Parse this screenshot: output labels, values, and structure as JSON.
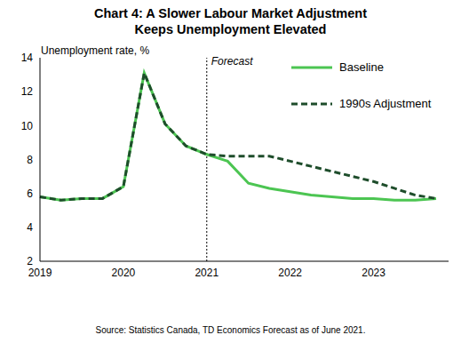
{
  "chart_data": {
    "type": "line",
    "title": "Chart 4: A Slower Labour Market Adjustment\nKeeps Unemployment Elevated",
    "y_label": "Unemployment rate, %",
    "source": "Source: Statistics Canada, TD Economics  Forecast as of June 2021.",
    "categories": [
      "2019",
      null,
      null,
      null,
      "2020",
      null,
      null,
      null,
      "2021",
      null,
      null,
      null,
      "2022",
      null,
      null,
      null,
      "2023",
      null,
      null,
      null
    ],
    "series": [
      {
        "name": "Baseline",
        "color": "#4cc552",
        "line_style": "solid",
        "values": [
          5.8,
          5.6,
          5.7,
          5.7,
          6.4,
          13.1,
          10.1,
          8.8,
          8.3,
          7.9,
          6.6,
          6.3,
          6.1,
          5.9,
          5.8,
          5.7,
          5.7,
          5.6,
          5.6,
          5.7
        ]
      },
      {
        "name": "1990s Adjustment",
        "color": "#1e4d2b",
        "line_style": "dashed",
        "values": [
          5.8,
          5.6,
          5.7,
          5.7,
          6.4,
          13.1,
          10.1,
          8.8,
          8.3,
          8.2,
          8.2,
          8.2,
          7.9,
          7.6,
          7.3,
          7.0,
          6.7,
          6.3,
          5.9,
          5.7
        ]
      }
    ],
    "annotations": [
      {
        "text": "Forecast",
        "x": "2021"
      }
    ],
    "ylim": [
      2,
      14
    ],
    "yticks": [
      2,
      4,
      6,
      8,
      10,
      12,
      14
    ],
    "grid": false,
    "legend": "upper right"
  }
}
